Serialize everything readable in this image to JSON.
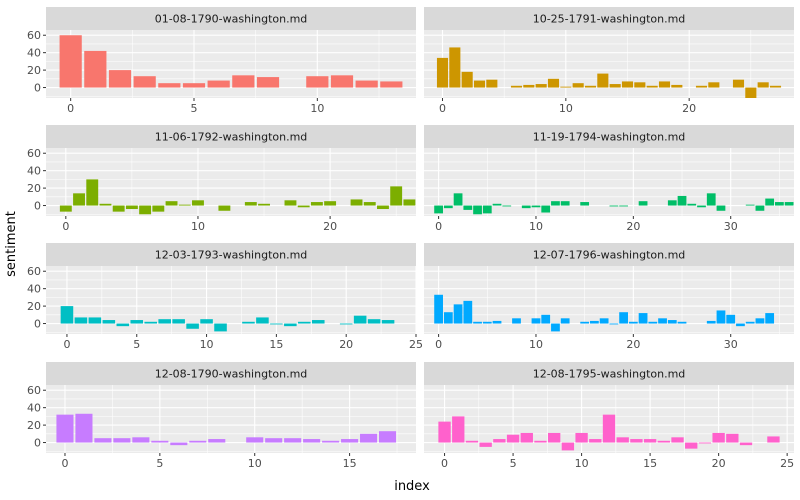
{
  "chart_data": {
    "type": "bar",
    "xlabel": "index",
    "ylabel": "sentiment",
    "ylim": [
      -12,
      66
    ],
    "y_ticks": [
      0,
      20,
      40,
      60
    ],
    "grid": true,
    "legend": "none",
    "facets": [
      {
        "name": "01-08-1790-washington.md",
        "color": "#F8766D",
        "x_ticks": [
          0,
          5,
          10
        ],
        "xlim": [
          -1,
          14
        ],
        "values": [
          60,
          42,
          20,
          13,
          5,
          5,
          8,
          14,
          12,
          null,
          13,
          14,
          8,
          7
        ]
      },
      {
        "name": "10-25-1791-washington.md",
        "color": "#CD9600",
        "x_ticks": [
          0,
          10,
          20
        ],
        "xlim": [
          -1.5,
          28.5
        ],
        "values": [
          34,
          46,
          18,
          8,
          9,
          null,
          2,
          3,
          4,
          10,
          1,
          5,
          2,
          16,
          4,
          7,
          6,
          2,
          7,
          3,
          null,
          2,
          6,
          null,
          9,
          -12,
          6,
          2
        ]
      },
      {
        "name": "11-06-1792-washington.md",
        "color": "#7CAE00",
        "x_ticks": [
          0,
          10,
          20
        ],
        "xlim": [
          -1.5,
          26.5
        ],
        "values": [
          -7,
          14,
          30,
          2,
          -7,
          -4,
          -10,
          -7,
          5,
          1,
          6,
          null,
          -6,
          null,
          4,
          2,
          null,
          6,
          -2,
          4,
          5,
          null,
          7,
          4,
          -4,
          22,
          7
        ]
      },
      {
        "name": "11-19-1794-washington.md",
        "color": "#00BE67",
        "x_ticks": [
          0,
          10,
          20,
          30
        ],
        "xlim": [
          -1.5,
          36.5
        ],
        "values": [
          -9,
          -3,
          14,
          -5,
          -10,
          -9,
          2,
          -1,
          null,
          -3,
          -2,
          -8,
          5,
          5,
          null,
          4,
          null,
          null,
          -1,
          -1,
          null,
          5,
          null,
          null,
          6,
          11,
          2,
          -2,
          14,
          -6,
          null,
          null,
          1,
          -6,
          8,
          4,
          4
        ]
      },
      {
        "name": "12-03-1793-washington.md",
        "color": "#00BFC4",
        "x_ticks": [
          0,
          5,
          10,
          15,
          20,
          25
        ],
        "xlim": [
          -1.5,
          25
        ],
        "values": [
          20,
          7,
          7,
          4,
          -3,
          4,
          2,
          5,
          5,
          -6,
          5,
          -9,
          null,
          2,
          7,
          -1,
          -3,
          2,
          4,
          null,
          -1,
          9,
          5,
          4
        ]
      },
      {
        "name": "12-07-1796-washington.md",
        "color": "#00A9FF",
        "x_ticks": [
          0,
          10,
          20,
          30
        ],
        "xlim": [
          -1.5,
          36.5
        ],
        "values": [
          33,
          13,
          22,
          26,
          2,
          2,
          3,
          null,
          6,
          null,
          6,
          10,
          -9,
          6,
          null,
          2,
          3,
          6,
          -1,
          13,
          2,
          12,
          2,
          6,
          4,
          2,
          null,
          null,
          3,
          15,
          10,
          -3,
          2,
          6,
          12
        ]
      },
      {
        "name": "12-08-1790-washington.md",
        "color": "#C77CFF",
        "x_ticks": [
          0,
          5,
          10,
          15
        ],
        "xlim": [
          -1,
          18.5
        ],
        "values": [
          32,
          33,
          5,
          5,
          6,
          2,
          -3,
          2,
          4,
          null,
          6,
          5,
          5,
          4,
          2,
          4,
          10,
          13
        ]
      },
      {
        "name": "12-08-1795-washington.md",
        "color": "#FF61CC",
        "x_ticks": [
          0,
          5,
          10,
          15,
          20,
          25
        ],
        "xlim": [
          -1.5,
          25.5
        ],
        "values": [
          24,
          30,
          2,
          -5,
          4,
          9,
          11,
          2,
          11,
          -9,
          11,
          4,
          32,
          6,
          4,
          4,
          2,
          6,
          -7,
          -1,
          11,
          10,
          -3,
          null,
          7
        ]
      }
    ]
  }
}
